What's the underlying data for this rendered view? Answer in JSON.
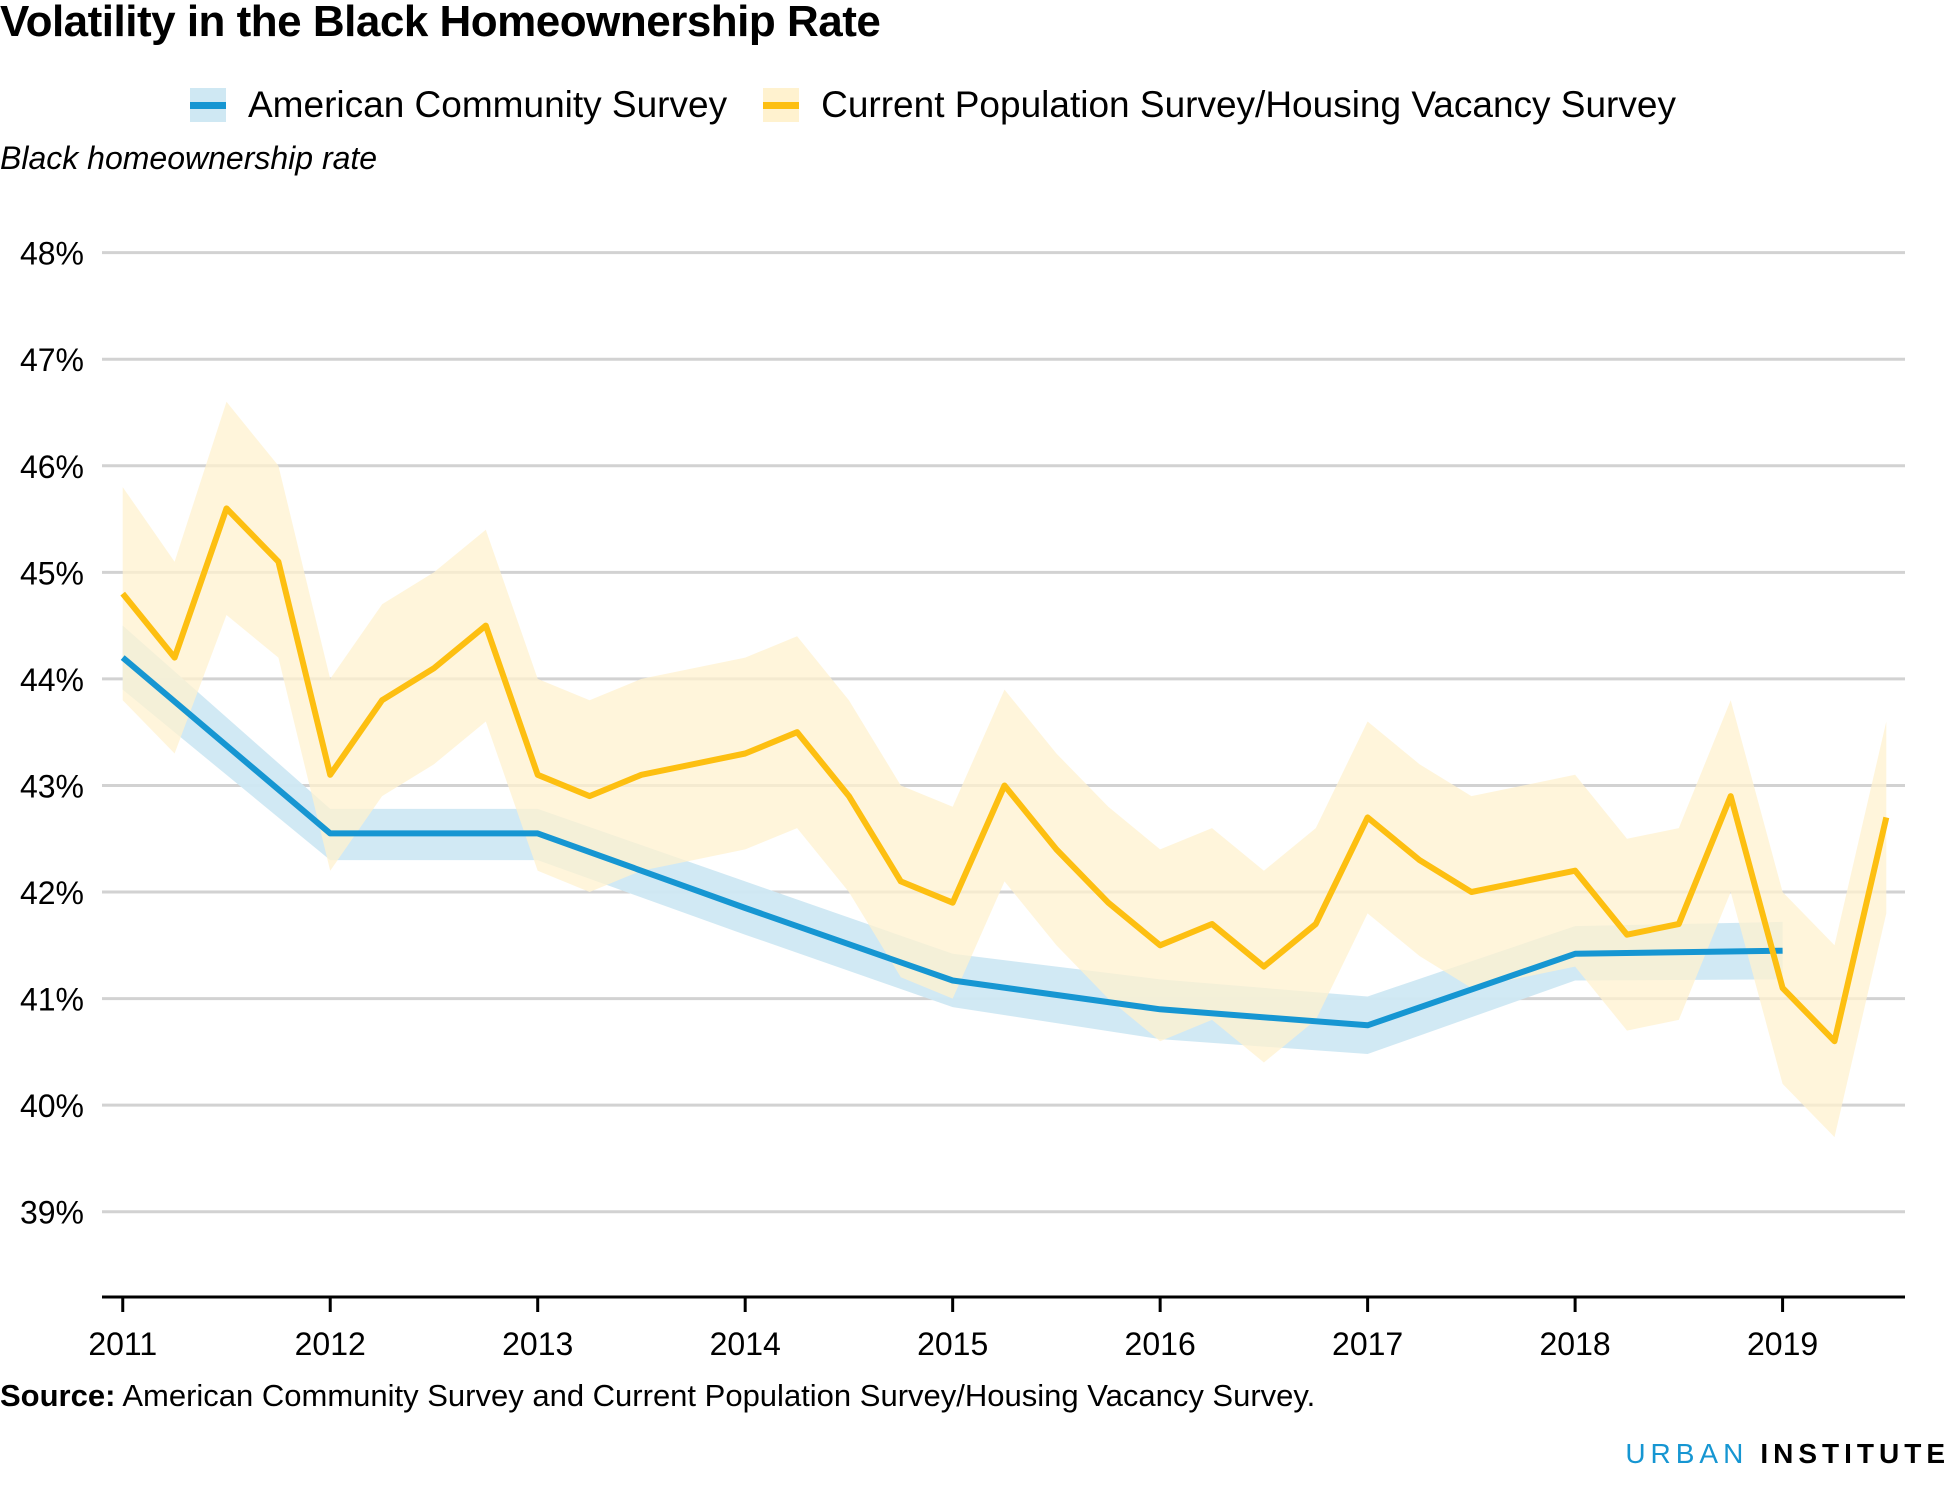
{
  "title": "Volatility in the Black Homeownership Rate",
  "legend": [
    {
      "label": "American Community Survey",
      "color": "#1696d2",
      "band_color": "#cfe8f3"
    },
    {
      "label": "Current Population Survey/Housing Vacancy Survey",
      "color": "#fdbf11",
      "band_color": "#fff2cf"
    }
  ],
  "source": {
    "label": "Source:",
    "text": "American Community Survey and Current Population Survey/Housing Vacancy Survey."
  },
  "brand": {
    "first": "URBAN",
    "second": "INSTITUTE"
  },
  "chart_data": {
    "type": "line",
    "title": "Volatility in the Black Homeownership Rate",
    "ylabel": "Black homeownership rate",
    "xlabel": "",
    "xlim": [
      2010.9,
      2019.59
    ],
    "ylim": [
      38.2,
      48.4
    ],
    "yticks": [
      39,
      40,
      41,
      42,
      43,
      44,
      45,
      46,
      47,
      48
    ],
    "ytick_labels": [
      "39%",
      "40%",
      "41%",
      "42%",
      "43%",
      "44%",
      "45%",
      "46%",
      "47%",
      "48%"
    ],
    "xticks": [
      2011,
      2012,
      2013,
      2014,
      2015,
      2016,
      2017,
      2018,
      2019
    ],
    "xtick_labels": [
      "2011",
      "2012",
      "2013",
      "2014",
      "2015",
      "2016",
      "2017",
      "2018",
      "2019"
    ],
    "grid": true,
    "legend_position": "top",
    "series": [
      {
        "name": "American Community Survey",
        "color": "#1696d2",
        "band_color": "#cfe8f3",
        "x": [
          2011,
          2012,
          2013,
          2014,
          2015,
          2016,
          2017,
          2018,
          2019
        ],
        "values": [
          44.2,
          42.55,
          42.55,
          41.85,
          41.17,
          40.9,
          40.75,
          41.42,
          41.45
        ],
        "lower": [
          43.9,
          42.3,
          42.3,
          41.6,
          40.92,
          40.62,
          40.48,
          41.17,
          41.18
        ],
        "upper": [
          44.5,
          42.78,
          42.78,
          42.1,
          41.42,
          41.18,
          41.02,
          41.68,
          41.72
        ]
      },
      {
        "name": "Current Population Survey/Housing Vacancy Survey",
        "color": "#fdbf11",
        "band_color": "#fff2cf",
        "x": [
          2011.0,
          2011.25,
          2011.5,
          2011.75,
          2012.0,
          2012.25,
          2012.5,
          2012.75,
          2013.0,
          2013.25,
          2013.5,
          2013.75,
          2014.0,
          2014.25,
          2014.5,
          2014.75,
          2015.0,
          2015.25,
          2015.5,
          2015.75,
          2016.0,
          2016.25,
          2016.5,
          2016.75,
          2017.0,
          2017.25,
          2017.5,
          2017.75,
          2018.0,
          2018.25,
          2018.5,
          2018.75,
          2019.0,
          2019.25,
          2019.5
        ],
        "values": [
          44.8,
          44.2,
          45.6,
          45.1,
          43.1,
          43.8,
          44.1,
          44.5,
          43.1,
          42.9,
          43.1,
          43.2,
          43.3,
          43.5,
          42.9,
          42.1,
          41.9,
          43.0,
          42.4,
          41.9,
          41.5,
          41.7,
          41.3,
          41.7,
          42.7,
          42.3,
          42.0,
          42.1,
          42.2,
          41.6,
          41.7,
          42.9,
          41.1,
          40.6,
          42.7
        ],
        "lower": [
          43.8,
          43.3,
          44.6,
          44.2,
          42.2,
          42.9,
          43.2,
          43.6,
          42.2,
          42.0,
          42.2,
          42.3,
          42.4,
          42.6,
          42.0,
          41.2,
          41.0,
          42.1,
          41.5,
          41.0,
          40.6,
          40.8,
          40.4,
          40.8,
          41.8,
          41.4,
          41.1,
          41.2,
          41.3,
          40.7,
          40.8,
          42.0,
          40.2,
          39.7,
          41.8
        ],
        "upper": [
          45.8,
          45.1,
          46.6,
          46.0,
          44.0,
          44.7,
          45.0,
          45.4,
          44.0,
          43.8,
          44.0,
          44.1,
          44.2,
          44.4,
          43.8,
          43.0,
          42.8,
          43.9,
          43.3,
          42.8,
          42.4,
          42.6,
          42.2,
          42.6,
          43.6,
          43.2,
          42.9,
          43.0,
          43.1,
          42.5,
          42.6,
          43.8,
          42.0,
          41.5,
          43.6
        ]
      }
    ]
  }
}
